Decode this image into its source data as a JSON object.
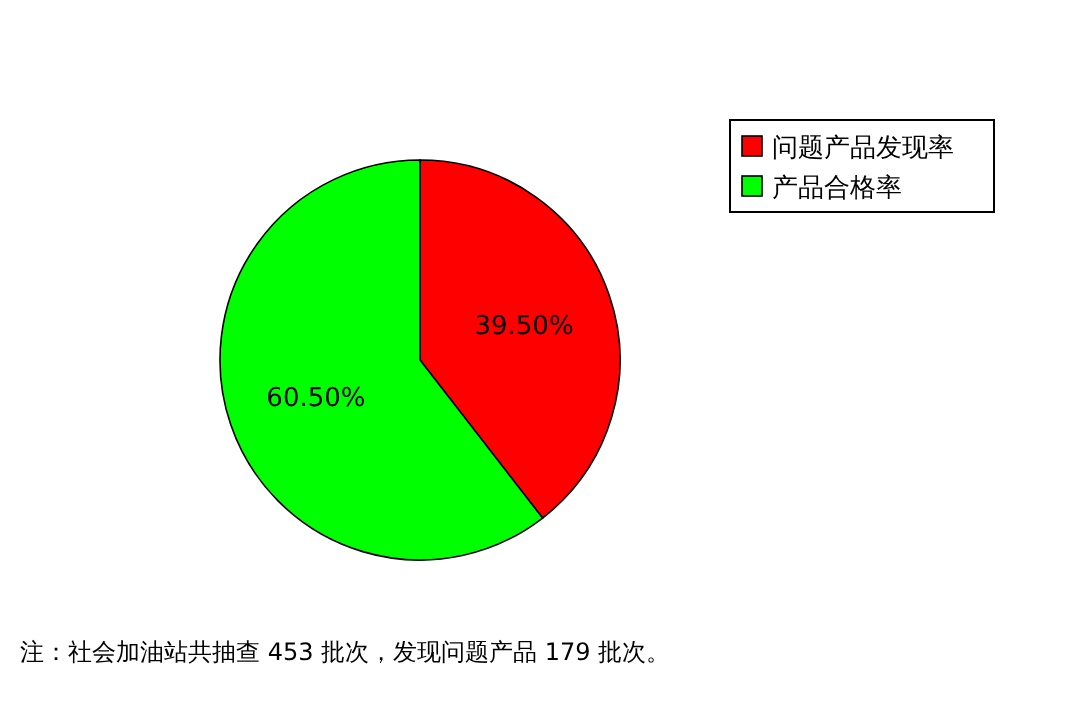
{
  "chart_data": {
    "type": "pie",
    "categories": [
      "问题产品发现率",
      "产品合格率"
    ],
    "values": [
      39.5,
      60.5
    ],
    "colors": [
      "#ff0000",
      "#00ff00"
    ],
    "value_labels": [
      "39.50%",
      "60.50%"
    ],
    "legend": "top right",
    "annotations": [
      "注：社会加油站共抽查 453 批次，发现问题产品 179 批次。"
    ]
  }
}
